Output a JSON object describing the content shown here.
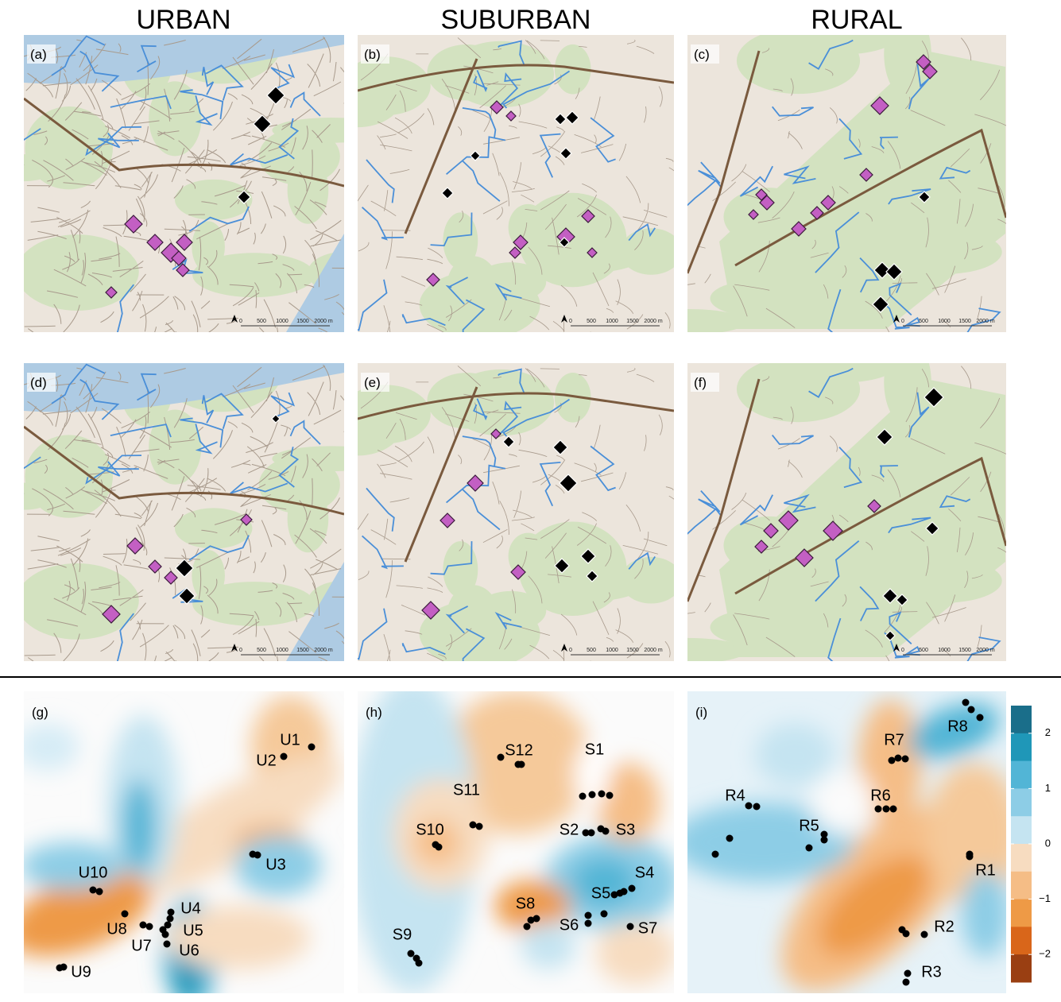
{
  "headers": [
    "URBAN",
    "SUBURBAN",
    "RURAL"
  ],
  "map_panels": [
    "(a)",
    "(b)",
    "(c)",
    "(d)",
    "(e)",
    "(f)"
  ],
  "scale_bar": [
    "0",
    "500",
    "1000",
    "1500",
    "2000 m"
  ],
  "contour_panels": [
    {
      "label": "(g)",
      "sites": [
        "U1",
        "U2",
        "U3",
        "U10",
        "U4",
        "U8",
        "U7",
        "U5",
        "U6",
        "U9"
      ]
    },
    {
      "label": "(h)",
      "sites": [
        "S1",
        "S12",
        "S11",
        "S10",
        "S2",
        "S3",
        "S4",
        "S5",
        "S8",
        "S6",
        "S7",
        "S9"
      ]
    },
    {
      "label": "(i)",
      "sites": [
        "R8",
        "R7",
        "R6",
        "R4",
        "R5",
        "R1",
        "R2",
        "R3"
      ]
    }
  ],
  "colorbar": {
    "range": [
      -2.5,
      2.5
    ],
    "ticks": [
      2,
      1,
      0,
      {
        "value": -1,
        "label": "−1"
      },
      {
        "value": -2,
        "label": "−2"
      }
    ],
    "colors": [
      "#1a6e8a",
      "#1f97b8",
      "#52b5d6",
      "#8dcde6",
      "#c5e4f1",
      "#f7dcc0",
      "#f5bd86",
      "#ee9a46",
      "#d9661a",
      "#9a3f12"
    ]
  }
}
